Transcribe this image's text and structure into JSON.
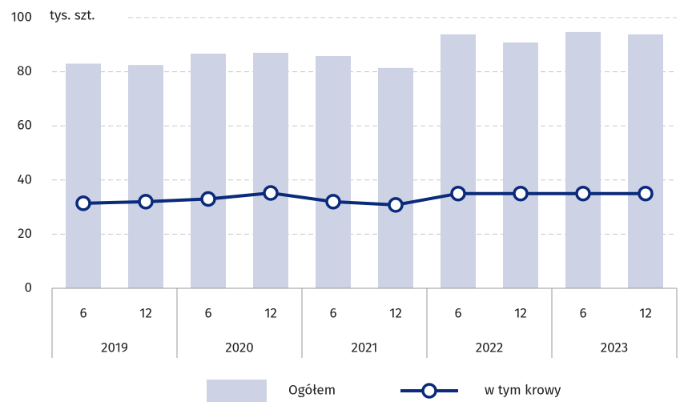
{
  "chart_data": {
    "type": "combo",
    "unit_label": "tys. szt.",
    "categories": [
      "6",
      "12",
      "6",
      "12",
      "6",
      "12",
      "6",
      "12",
      "6",
      "12"
    ],
    "years": [
      "2019",
      "2020",
      "2021",
      "2022",
      "2023"
    ],
    "series": [
      {
        "name": "Ogółem",
        "type": "bar",
        "color": "#cdd2e4",
        "values": [
          83,
          82.5,
          86.7,
          87,
          85.8,
          81.4,
          93.8,
          90.8,
          94.7,
          93.8
        ]
      },
      {
        "name": "w tym krowy",
        "type": "line",
        "color": "#0a2a7a",
        "values": [
          31.4,
          32,
          33,
          35.2,
          32,
          30.8,
          35,
          35,
          35,
          35
        ]
      }
    ],
    "ylim": [
      0,
      100
    ],
    "yticks": [
      0,
      20,
      40,
      60,
      80,
      100
    ],
    "grid": true
  }
}
